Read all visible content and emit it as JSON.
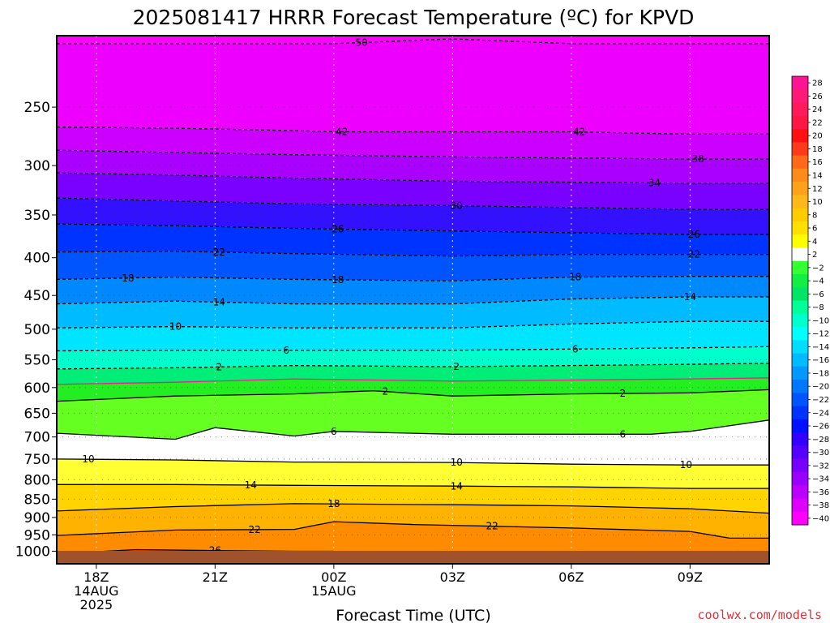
{
  "chart_data": {
    "type": "heatmap",
    "title": "2025081417 HRRR Forecast Temperature (ºC) for KPVD",
    "xlabel": "Forecast Time (UTC)",
    "ylabel": "",
    "credit": "coolwx.com/models",
    "y_scale": "log-pressure",
    "y_unit": "hPa",
    "ylim": [
      1040,
      200
    ],
    "xlim": [
      "2025-08-14 17Z",
      "2025-08-15 11Z"
    ],
    "y_ticks": [
      250,
      300,
      350,
      400,
      450,
      500,
      550,
      600,
      650,
      700,
      750,
      800,
      850,
      900,
      950,
      1000
    ],
    "x_ticks": [
      {
        "time": "2025-08-14 18Z",
        "lines": [
          "18Z",
          "14AUG",
          "2025"
        ]
      },
      {
        "time": "2025-08-14 21Z",
        "lines": [
          "21Z"
        ]
      },
      {
        "time": "2025-08-15 00Z",
        "lines": [
          "00Z",
          "15AUG"
        ]
      },
      {
        "time": "2025-08-15 03Z",
        "lines": [
          "03Z"
        ]
      },
      {
        "time": "2025-08-15 06Z",
        "lines": [
          "06Z"
        ]
      },
      {
        "time": "2025-08-15 09Z",
        "lines": [
          "09Z"
        ]
      }
    ],
    "grid": true,
    "legend": "right",
    "colorbar": {
      "levels": [
        "28",
        "26",
        "24",
        "22",
        "20",
        "18",
        "16",
        "14",
        "12",
        "10",
        "8",
        "6",
        "4",
        "2",
        "−2",
        "−4",
        "−6",
        "−8",
        "−10",
        "−12",
        "−14",
        "−16",
        "−18",
        "−20",
        "−22",
        "−24",
        "−26",
        "−28",
        "−30",
        "−32",
        "−34",
        "−36",
        "−38",
        "−40"
      ],
      "colors": [
        "#ff1493",
        "#ff1a78",
        "#ff1a5a",
        "#ff1744",
        "#ff1010",
        "#ff3a1a",
        "#ff6a1a",
        "#ff8c1a",
        "#ffa21a",
        "#ffb81a",
        "#ffcc00",
        "#ffe000",
        "#ffff00",
        "#ffffff",
        "#33ff33",
        "#11ee44",
        "#00e566",
        "#00ff99",
        "#00ffcc",
        "#00ffff",
        "#00ddff",
        "#00bbff",
        "#0099ff",
        "#0077ff",
        "#0055ff",
        "#0033ff",
        "#0011ff",
        "#3300ff",
        "#5500ff",
        "#7700ff",
        "#9900ff",
        "#bb00ff",
        "#dd00ff",
        "#ff00ff"
      ]
    },
    "contours": [
      {
        "value": 50,
        "label": "50",
        "style": "dashed",
        "points": [
          [
            17,
            205
          ],
          [
            20,
            205
          ],
          [
            23,
            205
          ],
          [
            24,
            205
          ],
          [
            27,
            202
          ],
          [
            30,
            205
          ],
          [
            33,
            205
          ],
          [
            35,
            205
          ]
        ],
        "labels_at": [
          24.7
        ]
      },
      {
        "value": 42,
        "label": "42",
        "style": "dashed",
        "points": [
          [
            17,
            266
          ],
          [
            20,
            267
          ],
          [
            23,
            269
          ],
          [
            24,
            270
          ],
          [
            27,
            270
          ],
          [
            30,
            270
          ],
          [
            33,
            272
          ],
          [
            35,
            272
          ]
        ],
        "labels_at": [
          24.2,
          30.2
        ]
      },
      {
        "value": 38,
        "label": "38",
        "style": "dashed",
        "points": [
          [
            17,
            286
          ],
          [
            20,
            288
          ],
          [
            23,
            290
          ],
          [
            27,
            292
          ],
          [
            30,
            293
          ],
          [
            33,
            294
          ],
          [
            35,
            294
          ]
        ],
        "labels_at": [
          33.2
        ]
      },
      {
        "value": 34,
        "label": "34",
        "style": "dashed",
        "points": [
          [
            17,
            307
          ],
          [
            20,
            309
          ],
          [
            23,
            312
          ],
          [
            27,
            315
          ],
          [
            30,
            316
          ],
          [
            33,
            317
          ],
          [
            35,
            317
          ]
        ],
        "labels_at": [
          32.1
        ]
      },
      {
        "value": 30,
        "label": "30",
        "style": "dashed",
        "points": [
          [
            17,
            332
          ],
          [
            20,
            335
          ],
          [
            23,
            338
          ],
          [
            27,
            340
          ],
          [
            30,
            342
          ],
          [
            33,
            344
          ],
          [
            35,
            344
          ]
        ],
        "labels_at": [
          27.1
        ]
      },
      {
        "value": 26,
        "label": "26",
        "style": "dashed",
        "points": [
          [
            17,
            360
          ],
          [
            20,
            362
          ],
          [
            23,
            365
          ],
          [
            27,
            368
          ],
          [
            30,
            370
          ],
          [
            33,
            372
          ],
          [
            35,
            372
          ]
        ],
        "labels_at": [
          24.1,
          33.1
        ]
      },
      {
        "value": 22,
        "label": "22",
        "style": "dashed",
        "points": [
          [
            17,
            393
          ],
          [
            20,
            392
          ],
          [
            23,
            395
          ],
          [
            27,
            398
          ],
          [
            30,
            396
          ],
          [
            33,
            396
          ],
          [
            35,
            396
          ]
        ],
        "labels_at": [
          21.1,
          33.1
        ]
      },
      {
        "value": 18,
        "label": "18",
        "style": "dashed",
        "points": [
          [
            17,
            428
          ],
          [
            20,
            425
          ],
          [
            23,
            428
          ],
          [
            27,
            430
          ],
          [
            30,
            425
          ],
          [
            33,
            424
          ],
          [
            35,
            424
          ]
        ],
        "labels_at": [
          18.8,
          24.1,
          30.1
        ]
      },
      {
        "value": 14,
        "label": "14",
        "style": "dashed",
        "points": [
          [
            17,
            462
          ],
          [
            20,
            458
          ],
          [
            23,
            462
          ],
          [
            27,
            462
          ],
          [
            30,
            455
          ],
          [
            33,
            452
          ],
          [
            35,
            452
          ]
        ],
        "labels_at": [
          21.1,
          33.0
        ]
      },
      {
        "value": 10,
        "label": "10",
        "style": "dashed",
        "points": [
          [
            17,
            498
          ],
          [
            20,
            496
          ],
          [
            23,
            498
          ],
          [
            27,
            498
          ],
          [
            30,
            492
          ],
          [
            33,
            488
          ],
          [
            35,
            488
          ]
        ],
        "labels_at": [
          20.0
        ]
      },
      {
        "value": 6,
        "label": "6",
        "style": "dashed",
        "points": [
          [
            17,
            535
          ],
          [
            20,
            534
          ],
          [
            23,
            534
          ],
          [
            27,
            534
          ],
          [
            30,
            532
          ],
          [
            33,
            530
          ],
          [
            35,
            528
          ]
        ],
        "labels_at": [
          22.8,
          30.1
        ]
      },
      {
        "value": 2,
        "label": "2",
        "style": "dashed",
        "points": [
          [
            17,
            566
          ],
          [
            20,
            564
          ],
          [
            23,
            560
          ],
          [
            27,
            562
          ],
          [
            30,
            560
          ],
          [
            33,
            558
          ],
          [
            35,
            556
          ]
        ],
        "labels_at": [
          21.1,
          27.1
        ]
      },
      {
        "value": 0,
        "label": "",
        "style": "solid",
        "color": "#ee1f8f",
        "points": [
          [
            17,
            594
          ],
          [
            20,
            590
          ],
          [
            23,
            584
          ],
          [
            27,
            588
          ],
          [
            30,
            586
          ],
          [
            33,
            584
          ],
          [
            35,
            582
          ]
        ],
        "labels_at": []
      },
      {
        "value": 2,
        "label": "2",
        "style": "solid",
        "points": [
          [
            17,
            626
          ],
          [
            20,
            616
          ],
          [
            23,
            612
          ],
          [
            25,
            606
          ],
          [
            27,
            616
          ],
          [
            30,
            612
          ],
          [
            33,
            610
          ],
          [
            35,
            604
          ]
        ],
        "labels_at": [
          25.3,
          31.3
        ]
      },
      {
        "value": 6,
        "label": "6",
        "style": "solid",
        "points": [
          [
            17,
            692
          ],
          [
            20,
            705
          ],
          [
            21,
            680
          ],
          [
            23,
            698
          ],
          [
            24,
            688
          ],
          [
            27,
            694
          ],
          [
            30,
            694
          ],
          [
            32,
            694
          ],
          [
            33,
            688
          ],
          [
            35,
            664
          ]
        ],
        "labels_at": [
          24.0,
          31.3
        ]
      },
      {
        "value": 10,
        "label": "10",
        "style": "solid",
        "points": [
          [
            17,
            750
          ],
          [
            20,
            752
          ],
          [
            23,
            757
          ],
          [
            27,
            758
          ],
          [
            30,
            762
          ],
          [
            33,
            764
          ],
          [
            35,
            764
          ]
        ],
        "labels_at": [
          17.8,
          27.1,
          32.9
        ]
      },
      {
        "value": 14,
        "label": "14",
        "style": "solid",
        "points": [
          [
            17,
            812
          ],
          [
            20,
            812
          ],
          [
            23,
            814
          ],
          [
            27,
            816
          ],
          [
            30,
            818
          ],
          [
            33,
            822
          ],
          [
            35,
            822
          ]
        ],
        "labels_at": [
          21.9,
          27.1
        ]
      },
      {
        "value": 18,
        "label": "18",
        "style": "solid",
        "points": [
          [
            17,
            882
          ],
          [
            20,
            870
          ],
          [
            23,
            862
          ],
          [
            27,
            865
          ],
          [
            30,
            868
          ],
          [
            33,
            876
          ],
          [
            35,
            888
          ]
        ],
        "labels_at": [
          24.0
        ]
      },
      {
        "value": 22,
        "label": "22",
        "style": "solid",
        "points": [
          [
            17,
            952
          ],
          [
            20,
            936
          ],
          [
            23,
            934
          ],
          [
            24,
            912
          ],
          [
            26,
            920
          ],
          [
            28,
            925
          ],
          [
            30,
            930
          ],
          [
            33,
            940
          ],
          [
            34,
            960
          ],
          [
            35,
            960
          ]
        ],
        "labels_at": [
          22.0,
          28.0
        ]
      },
      {
        "value": 26,
        "label": "26",
        "style": "solid",
        "points": [
          [
            17,
            1008
          ],
          [
            19,
            995
          ],
          [
            21,
            998
          ],
          [
            23,
            1000
          ],
          [
            24,
            1000
          ]
        ],
        "labels_at": [
          21.0
        ]
      },
      {
        "value": 26,
        "label": "",
        "style": "solid",
        "points": [
          [
            32.6,
            1014
          ],
          [
            34,
            1004
          ],
          [
            34.2,
            1000
          ],
          [
            34.5,
            1004
          ],
          [
            35,
            1004
          ]
        ],
        "labels_at": []
      }
    ],
    "surface_pressure_hpa": 1012
  }
}
